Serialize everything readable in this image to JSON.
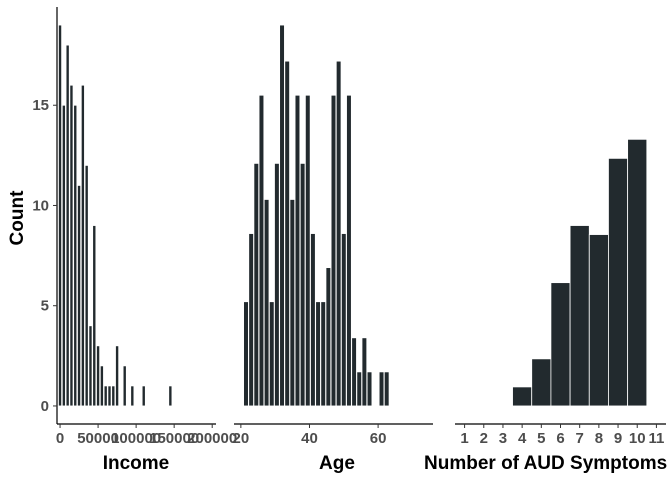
{
  "chart_data": {
    "type": "bar",
    "ylabel": "Count",
    "ylim": [
      -0.9,
      19.9
    ],
    "yticks": [
      0,
      5,
      10,
      15
    ],
    "bar_color": "#222a2e",
    "panels": [
      {
        "xlabel": "Income",
        "xlim": [
          -4000,
          205000
        ],
        "xticks": [
          0,
          50000,
          100000,
          150000,
          200000
        ],
        "xtick_labels": [
          "0",
          "50000",
          "100000",
          "150000",
          "200000"
        ],
        "bar_width": 4200,
        "bars": [
          {
            "x": 0,
            "y": 19
          },
          {
            "x": 5000,
            "y": 15
          },
          {
            "x": 10000,
            "y": 18
          },
          {
            "x": 15000,
            "y": 16
          },
          {
            "x": 20000,
            "y": 15
          },
          {
            "x": 25000,
            "y": 11
          },
          {
            "x": 30000,
            "y": 16
          },
          {
            "x": 35000,
            "y": 12
          },
          {
            "x": 40000,
            "y": 4
          },
          {
            "x": 45000,
            "y": 9
          },
          {
            "x": 50000,
            "y": 3
          },
          {
            "x": 55000,
            "y": 2
          },
          {
            "x": 60000,
            "y": 1
          },
          {
            "x": 65000,
            "y": 1
          },
          {
            "x": 70000,
            "y": 1
          },
          {
            "x": 75000,
            "y": 3
          },
          {
            "x": 85000,
            "y": 2
          },
          {
            "x": 95000,
            "y": 1
          },
          {
            "x": 110000,
            "y": 1
          },
          {
            "x": 145000,
            "y": 1
          }
        ]
      },
      {
        "xlabel": "Age",
        "xlim": [
          18,
          76
        ],
        "xticks": [
          20,
          40,
          60
        ],
        "xtick_labels": [
          "20",
          "40",
          "60"
        ],
        "bar_width": 1.4,
        "bars": [
          {
            "x": 21.5,
            "y": 5.2
          },
          {
            "x": 23,
            "y": 8.6
          },
          {
            "x": 24.5,
            "y": 12.1
          },
          {
            "x": 26,
            "y": 15.5
          },
          {
            "x": 27.5,
            "y": 10.3
          },
          {
            "x": 29,
            "y": 5.2
          },
          {
            "x": 30.5,
            "y": 12.1
          },
          {
            "x": 32,
            "y": 19
          },
          {
            "x": 33.5,
            "y": 17.2
          },
          {
            "x": 35,
            "y": 10.3
          },
          {
            "x": 36.5,
            "y": 15.5
          },
          {
            "x": 38,
            "y": 12.1
          },
          {
            "x": 39.5,
            "y": 15.5
          },
          {
            "x": 41,
            "y": 8.6
          },
          {
            "x": 42.5,
            "y": 5.2
          },
          {
            "x": 44,
            "y": 5.2
          },
          {
            "x": 45.5,
            "y": 6.9
          },
          {
            "x": 47,
            "y": 15.5
          },
          {
            "x": 48.5,
            "y": 17.2
          },
          {
            "x": 50,
            "y": 8.6
          },
          {
            "x": 51.5,
            "y": 15.5
          },
          {
            "x": 53,
            "y": 3.4
          },
          {
            "x": 54.5,
            "y": 1.7
          },
          {
            "x": 56,
            "y": 3.4
          },
          {
            "x": 57.5,
            "y": 1.7
          },
          {
            "x": 61,
            "y": 1.7
          },
          {
            "x": 62.5,
            "y": 1.7
          }
        ]
      },
      {
        "xlabel": "Number of AUD Symptoms",
        "xlim": [
          0.5,
          11.5
        ],
        "xticks": [
          1,
          2,
          3,
          4,
          5,
          6,
          7,
          8,
          9,
          10,
          11
        ],
        "xtick_labels": [
          "1",
          "2",
          "3",
          "4",
          "5",
          "6",
          "7",
          "8",
          "9",
          "10",
          "11"
        ],
        "bar_width": 1,
        "bars": [
          {
            "x": 4,
            "y": 0.95
          },
          {
            "x": 5,
            "y": 2.35
          },
          {
            "x": 6,
            "y": 6.15
          },
          {
            "x": 7,
            "y": 9
          },
          {
            "x": 8,
            "y": 8.55
          },
          {
            "x": 9,
            "y": 12.35
          },
          {
            "x": 10,
            "y": 13.3
          }
        ]
      }
    ]
  }
}
